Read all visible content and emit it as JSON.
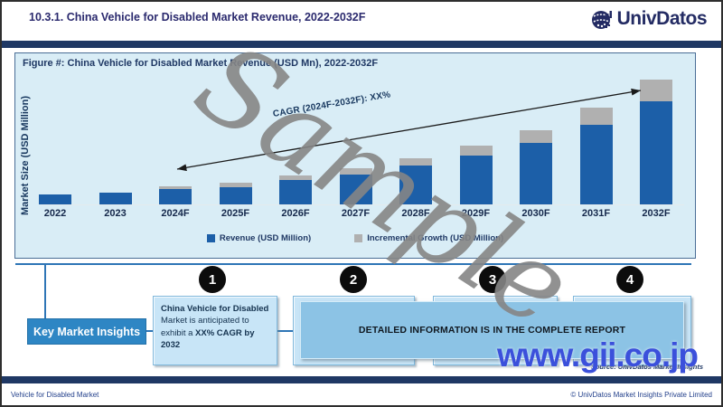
{
  "header": {
    "title": "10.3.1. China Vehicle for Disabled Market Revenue, 2022-2032F",
    "brand": "UnivDatos"
  },
  "figure": {
    "title": "Figure #: China Vehicle for Disabled Market Revenue (USD Mn), 2022-2032F",
    "y_axis_label": "Market Size (USD Million)",
    "cagr_label": "CAGR (2024F-2032F): XX%"
  },
  "chart_data": {
    "type": "bar",
    "stacked": true,
    "title": "Figure #: China Vehicle for Disabled Market Revenue (USD Mn), 2022-2032F",
    "xlabel": "",
    "ylabel": "Market Size (USD Million)",
    "categories": [
      "2022",
      "2023",
      "2024F",
      "2025F",
      "2026F",
      "2027F",
      "2028F",
      "2029F",
      "2030F",
      "2031F",
      "2032F"
    ],
    "series": [
      {
        "name": "Revenue (USD Million)",
        "color": "#1C5FA8",
        "values_relative": [
          11,
          13,
          17,
          19,
          27,
          33,
          43,
          54,
          68,
          88,
          114
        ]
      },
      {
        "name": "Incremental Growth (USD Million)",
        "color": "#B0B0B0",
        "values_relative": [
          0,
          0,
          3,
          5,
          5,
          7,
          8,
          11,
          14,
          19,
          24
        ]
      }
    ],
    "annotations": [
      {
        "type": "double-headed-arrow",
        "text": "CAGR (2024F-2032F): XX%",
        "from_category": "2024F",
        "to_category": "2032F"
      }
    ],
    "legend_position": "bottom",
    "grid": false,
    "note": "Sample report: y-axis shows no numeric ticks and CAGR value is redacted as XX%; series values are relative bar heights estimated from the image."
  },
  "insights": {
    "button_label": "Key Market Insights",
    "steps": [
      "1",
      "2",
      "3",
      "4"
    ],
    "box1": {
      "line1": "China Vehicle for Disabled",
      "line2": "Market is anticipated to",
      "line3_prefix": "exhibit a ",
      "line3_bold": "XX% CAGR by 2032"
    },
    "overlay_text": "DETAILED INFORMATION IS IN THE COMPLETE REPORT"
  },
  "source": "Source: UnivDatos Market Insights",
  "footer": {
    "left": "Vehicle for Disabled Market",
    "right": "© UnivDatos Market Insights Private Limited"
  },
  "watermarks": {
    "sample": "Sample",
    "gii": "www.gii.co.jp"
  },
  "colors": {
    "navy": "#1F3864",
    "revenue_bar": "#1C5FA8",
    "incremental_bar": "#B0B0B0",
    "accent_blue_line": "#2E75B6",
    "button_blue": "#2E86C4",
    "figure_background": "#D9EDF6",
    "gii_watermark_blue": "#3B50DB"
  }
}
